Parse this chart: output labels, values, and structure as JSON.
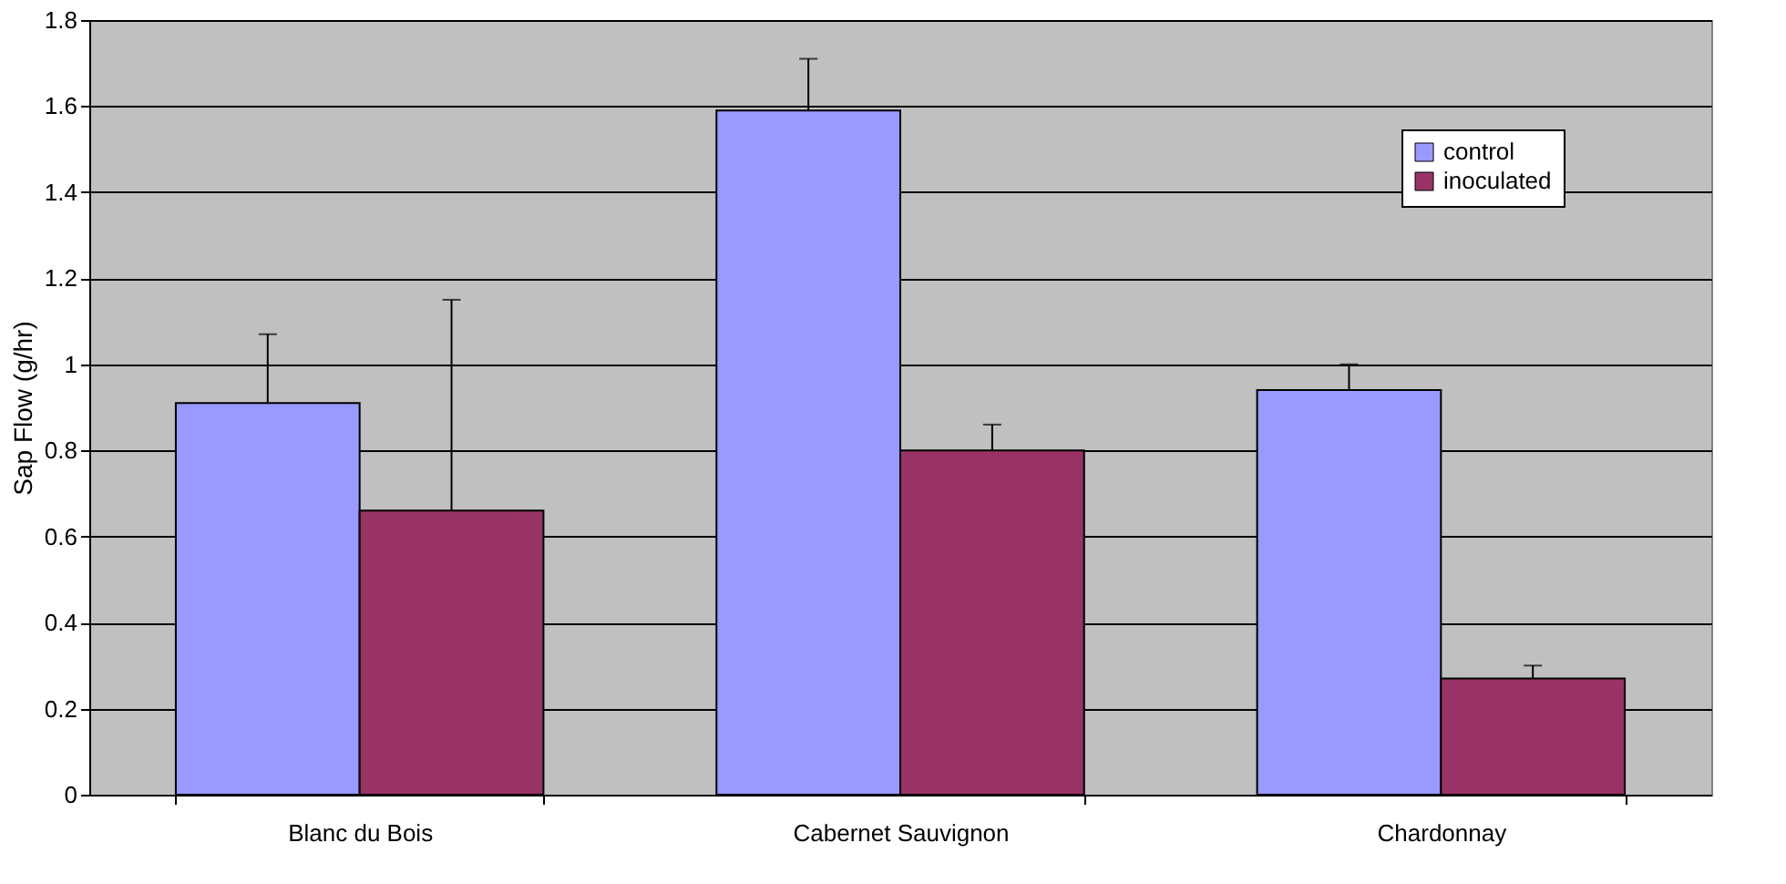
{
  "chart_data": {
    "type": "bar",
    "ylabel": "Sap Flow (g/hr)",
    "categories": [
      "Blanc du Bois",
      "Cabernet Sauvignon",
      "Chardonnay"
    ],
    "series": [
      {
        "name": "control",
        "color": "#9999ff",
        "values": [
          0.91,
          1.59,
          0.94
        ],
        "errors": [
          [
            0.91,
            1.07
          ],
          [
            1.59,
            1.71
          ],
          [
            0.94,
            1.0
          ]
        ]
      },
      {
        "name": "inoculated",
        "color": "#993366",
        "values": [
          0.66,
          0.8,
          0.27
        ],
        "errors": [
          [
            0.66,
            1.15
          ],
          [
            0.8,
            0.86
          ],
          [
            0.27,
            0.3
          ]
        ]
      }
    ],
    "ylim": [
      0,
      1.8
    ],
    "yticks": [
      0,
      0.2,
      0.4,
      0.6,
      0.8,
      1,
      1.2,
      1.4,
      1.6,
      1.8
    ],
    "grid": "y",
    "legend": "top right"
  }
}
